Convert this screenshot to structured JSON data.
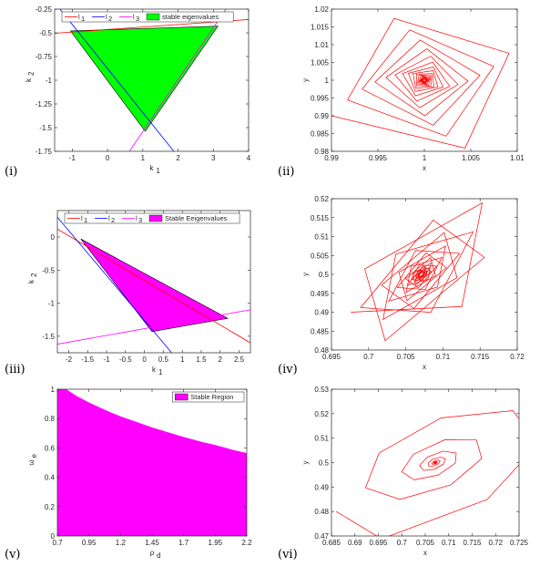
{
  "colors": {
    "green_fill": "#00ff00",
    "magenta_fill": "#ff00ff",
    "red_line": "#ff0000",
    "blue_line": "#0000ff",
    "magenta_line": "#ff00ff",
    "axis": "#262626"
  },
  "chart_data": [
    {
      "id": "i",
      "panel_label": "(i)",
      "type": "area",
      "xlabel": "k",
      "xlabel_sub": "1",
      "ylabel": "k",
      "ylabel_sub": "2",
      "xlim": [
        -1.5,
        4
      ],
      "ylim": [
        -1.75,
        -0.25
      ],
      "xticks": [
        -1,
        0,
        1,
        2,
        3,
        4
      ],
      "xticklabels": [
        "-1",
        "0",
        "1",
        "2",
        "3",
        "4"
      ],
      "yticks": [
        -1.75,
        -1.5,
        -1.25,
        -1,
        -0.75,
        -0.5,
        -0.25
      ],
      "yticklabels": [
        "-1.75",
        "-1.5",
        "-1.25",
        "-1",
        "-0.75",
        "-0.5",
        "-0.25"
      ],
      "legend": {
        "position": "top",
        "entries": [
          {
            "label": "l",
            "sub": "1",
            "kind": "line",
            "color": "#ff0000"
          },
          {
            "label": "l",
            "sub": "2",
            "kind": "line",
            "color": "#0000ff"
          },
          {
            "label": "l",
            "sub": "3",
            "kind": "line",
            "color": "#ff00ff"
          },
          {
            "label": "stable eigenvalues",
            "sub": "",
            "kind": "patch",
            "color": "#00ff00"
          }
        ]
      },
      "lines": [
        {
          "name": "l1",
          "color": "#ff0000",
          "points": [
            [
              -1.5,
              -0.505
            ],
            [
              4,
              -0.36
            ]
          ]
        },
        {
          "name": "l2",
          "color": "#0000ff",
          "points": [
            [
              -1.35,
              -0.25
            ],
            [
              1.88,
              -1.75
            ]
          ]
        },
        {
          "name": "l3",
          "color": "#ff00ff",
          "points": [
            [
              0.62,
              -1.75
            ],
            [
              3.36,
              -0.25
            ]
          ]
        }
      ],
      "region": {
        "color": "#00ff00",
        "points": [
          [
            -1.05,
            -0.48
          ],
          [
            3.13,
            -0.43
          ],
          [
            1.07,
            -1.54
          ]
        ]
      }
    },
    {
      "id": "ii",
      "panel_label": "(ii)",
      "type": "line",
      "xlabel": "x",
      "ylabel": "y",
      "xlim": [
        0.99,
        1.01
      ],
      "ylim": [
        0.98,
        1.02
      ],
      "xticks": [
        0.99,
        0.995,
        1,
        1.005,
        1.01
      ],
      "xticklabels": [
        "0.99",
        "0.995",
        "1",
        "1.005",
        "1.01"
      ],
      "yticks": [
        0.98,
        0.985,
        0.99,
        0.995,
        1,
        1.005,
        1.01,
        1.015,
        1.02
      ],
      "yticklabels": [
        "0.98",
        "0.985",
        "0.99",
        "0.995",
        "1",
        "1.005",
        "1.01",
        "1.015",
        "1.02"
      ],
      "trajectory": {
        "color": "#ff0000",
        "center": [
          1,
          1
        ],
        "start": [
          0.99,
          0.99
        ],
        "steps": 70,
        "ratio": 0.94,
        "angle_deg": 88,
        "skew": [
          1,
          0,
          0,
          1
        ]
      }
    },
    {
      "id": "iii",
      "panel_label": "(iii)",
      "type": "area",
      "xlabel": "k",
      "xlabel_sub": "1",
      "ylabel": "k",
      "ylabel_sub": "2",
      "xlim": [
        -2.3,
        2.8
      ],
      "ylim": [
        -1.75,
        0.4
      ],
      "xticks": [
        -2,
        -1.5,
        -1,
        -0.5,
        0,
        0.5,
        1,
        1.5,
        2,
        2.5
      ],
      "xticklabels": [
        "-2",
        "-1.5",
        "-1",
        "-0.5",
        "0",
        "0.5",
        "1",
        "1.5",
        "2",
        "2.5"
      ],
      "yticks": [
        -1.5,
        -1,
        -0.5,
        0
      ],
      "yticklabels": [
        "-1.5",
        "-1",
        "-0.5",
        "0"
      ],
      "legend": {
        "position": "top",
        "entries": [
          {
            "label": "l",
            "sub": "1",
            "kind": "line",
            "color": "#ff0000"
          },
          {
            "label": "l",
            "sub": "2",
            "kind": "line",
            "color": "#0000ff"
          },
          {
            "label": "l",
            "sub": "3",
            "kind": "line",
            "color": "#ff00ff"
          },
          {
            "label": "Stable Eeigenvalues",
            "sub": "",
            "kind": "patch",
            "color": "#ff00ff"
          }
        ]
      },
      "lines": [
        {
          "name": "l1",
          "color": "#ff0000",
          "points": [
            [
              -2.3,
              0.12
            ],
            [
              2.8,
              -1.6
            ]
          ]
        },
        {
          "name": "l2",
          "color": "#0000ff",
          "points": [
            [
              -2.3,
              0.3
            ],
            [
              0.72,
              -1.75
            ]
          ]
        },
        {
          "name": "l3",
          "color": "#ff00ff",
          "points": [
            [
              -2.3,
              -1.62
            ],
            [
              2.8,
              -1.1
            ]
          ]
        }
      ],
      "region": {
        "color": "#ff00ff",
        "points": [
          [
            -1.68,
            -0.03
          ],
          [
            2.2,
            -1.23
          ],
          [
            0.2,
            -1.43
          ]
        ]
      }
    },
    {
      "id": "iv",
      "panel_label": "(iv)",
      "type": "line",
      "xlabel": "x",
      "ylabel": "y",
      "xlim": [
        0.695,
        0.72
      ],
      "ylim": [
        0.48,
        0.52
      ],
      "xticks": [
        0.695,
        0.7,
        0.705,
        0.71,
        0.715,
        0.72
      ],
      "xticklabels": [
        "0.695",
        "0.7",
        "0.705",
        "0.71",
        "0.715",
        "0.72"
      ],
      "yticks": [
        0.48,
        0.485,
        0.49,
        0.495,
        0.5,
        0.505,
        0.51,
        0.515,
        0.52
      ],
      "yticklabels": [
        "0.48",
        "0.485",
        "0.49",
        "0.495",
        "0.5",
        "0.505",
        "0.51",
        "0.515",
        "0.52"
      ],
      "trajectory": {
        "color": "#ff0000",
        "center": [
          0.7071,
          0.5
        ],
        "start": [
          0.6976,
          0.49
        ],
        "steps": 70,
        "ratio": 0.95,
        "angle_deg": 100,
        "skew": [
          1,
          0.25,
          0.9,
          1.1
        ]
      }
    },
    {
      "id": "v",
      "panel_label": "(v)",
      "type": "area",
      "xlabel": "ρ",
      "xlabel_sub": "d",
      "ylabel": "ω",
      "ylabel_sub": "e",
      "xlim": [
        0.7,
        2.2
      ],
      "ylim": [
        0,
        1
      ],
      "xticks": [
        0.7,
        0.95,
        1.2,
        1.45,
        1.7,
        1.95,
        2.2
      ],
      "xticklabels": [
        "0.7",
        "0.95",
        "1.2",
        "1.45",
        "1.7",
        "1.95",
        "2.2"
      ],
      "yticks": [
        0,
        0.2,
        0.4,
        0.6,
        0.8,
        1
      ],
      "yticklabels": [
        "0",
        "0.2",
        "0.4",
        "0.6",
        "0.8",
        "1"
      ],
      "legend": {
        "position": "top-right",
        "entries": [
          {
            "label": "Stable Region",
            "sub": "",
            "kind": "patch",
            "color": "#ff00ff"
          }
        ]
      },
      "boundary": {
        "color": "#ff00ff",
        "x": [
          0.7,
          0.77,
          0.85,
          0.95,
          1.1,
          1.2,
          1.35,
          1.45,
          1.6,
          1.7,
          1.85,
          1.95,
          2.1,
          2.2
        ],
        "y": [
          1.0,
          1.0,
          0.955,
          0.91,
          0.85,
          0.815,
          0.77,
          0.74,
          0.7,
          0.675,
          0.64,
          0.62,
          0.585,
          0.565
        ]
      }
    },
    {
      "id": "vi",
      "panel_label": "(vi)",
      "type": "line",
      "xlabel": "x",
      "ylabel": "y",
      "xlim": [
        0.685,
        0.725
      ],
      "ylim": [
        0.47,
        0.53
      ],
      "xticks": [
        0.685,
        0.69,
        0.695,
        0.7,
        0.705,
        0.71,
        0.715,
        0.72,
        0.725
      ],
      "xticklabels": [
        "0.685",
        "0.69",
        "0.695",
        "0.7",
        "0.705",
        "0.71",
        "0.715",
        "0.72",
        "0.725"
      ],
      "yticks": [
        0.47,
        0.48,
        0.49,
        0.5,
        0.51,
        0.52,
        0.53
      ],
      "yticklabels": [
        "0.47",
        "0.48",
        "0.49",
        "0.5",
        "0.51",
        "0.52",
        "0.53"
      ],
      "trajectory": {
        "color": "#ff0000",
        "center": [
          0.7071,
          0.5
        ],
        "start": [
          0.686,
          0.48
        ],
        "steps": 55,
        "ratio": 0.9,
        "angle_deg": 50,
        "skew": [
          1.2,
          0.35,
          0.5,
          0.9
        ]
      }
    }
  ]
}
